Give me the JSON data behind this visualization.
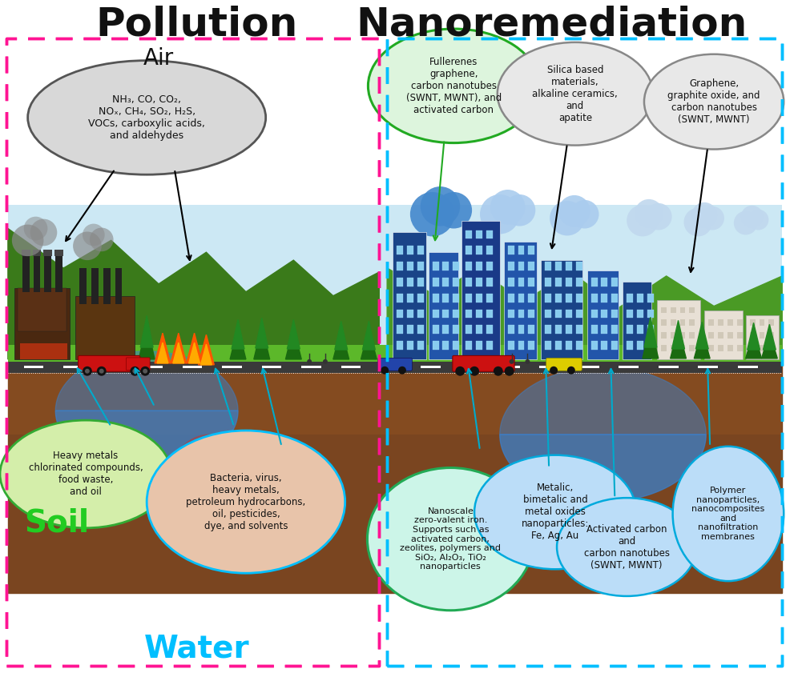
{
  "title_left": "Pollution",
  "title_right": "Nanoremediation",
  "title_fontsize": 36,
  "title_color": "#111111",
  "left_box_color": "#FF1493",
  "right_box_color": "#00BFFF",
  "air_label": "Air",
  "air_label_color": "#111111",
  "air_label_fontsize": 20,
  "soil_label": "Soil",
  "soil_label_color": "#22cc22",
  "soil_label_fontsize": 28,
  "water_label": "Water",
  "water_label_color": "#00BFFF",
  "water_label_fontsize": 28,
  "pollution_air_text": "NH₃, CO, CO₂,\nNOₓ, CH₄, SO₂, H₂S,\nVOCs, carboxylic acids,\nand aldehydes",
  "pollution_air_bubble_color": "#d8d8d8",
  "pollution_air_bubble_edge": "#555555",
  "pollution_soil_text": "Heavy metals\nchlorinated compounds,\nfood waste,\nand oil",
  "pollution_soil_bubble_color": "#d4eeaa",
  "pollution_soil_bubble_edge": "#33aa33",
  "pollution_water_text": "Bacteria, virus,\nheavy metals,\npetroleum hydrocarbons,\noil, pesticides,\ndye, and solvents",
  "pollution_water_bubble_color": "#e8c4aa",
  "pollution_water_bubble_edge": "#00BFFF",
  "nano_air1_text": "Fullerenes\ngraphene,\ncarbon nanotubes\n(SWNT, MWNT), and\nactivated carbon",
  "nano_air1_bubble_color": "#ddf5dd",
  "nano_air1_bubble_edge": "#22aa22",
  "nano_air2_text": "Silica based\nmaterials,\nalkaline ceramics,\nand\napatite",
  "nano_air2_bubble_color": "#e8e8e8",
  "nano_air2_bubble_edge": "#888888",
  "nano_air3_text": "Graphene,\ngraphite oxide, and\ncarbon nanotubes\n(SWNT, MWNT)",
  "nano_air3_bubble_color": "#e8e8e8",
  "nano_air3_bubble_edge": "#888888",
  "nano_water1_text": "Nanoscale\nzero-valent iron.\nSupports such as\nactivated carbon,\nzeolites, polymers and\nSiO₂, Al₂O₃, TiO₂\nnanoparticles",
  "nano_water1_bubble_color": "#ccf5e8",
  "nano_water1_bubble_edge": "#22aa55",
  "nano_water2_text": "Metalic,\nbimetalic and\nmetal oxides\nnanoparticles:\nFe, Ag, Au",
  "nano_water2_bubble_color": "#bbddf8",
  "nano_water2_bubble_edge": "#00AADD",
  "nano_water3_text": "Activated carbon\nand\ncarbon nanotubes\n(SWNT, MWNT)",
  "nano_water3_bubble_color": "#bbddf8",
  "nano_water3_bubble_edge": "#00AADD",
  "nano_water4_text": "Polymer\nnanoparticles,\nnanocomposites\nand\nnanofiltration\nmembranes",
  "nano_water4_bubble_color": "#bbddf8",
  "nano_water4_bubble_edge": "#00AADD",
  "bg_color": "#ffffff"
}
